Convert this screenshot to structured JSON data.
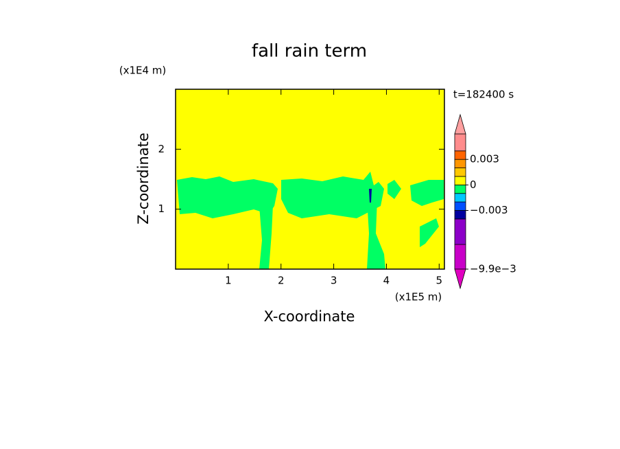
{
  "chart_data": {
    "type": "contour",
    "title": "fall rain term",
    "x_label": "X-coordinate",
    "y_label": "Z-coordinate",
    "x_unit": "(x1E5 m)",
    "y_unit": "(x1E4 m)",
    "annotation": "t=182400 s",
    "xlim": [
      0,
      5.1
    ],
    "ylim": [
      0,
      3
    ],
    "xticks": [
      1,
      2,
      3,
      4,
      5
    ],
    "yticks": [
      1,
      2
    ],
    "colorbar": {
      "levels": [
        -0.0099,
        -0.007,
        -0.004,
        -0.003,
        -0.002,
        -0.001,
        0,
        0.001,
        0.002,
        0.003,
        0.004,
        0.006
      ],
      "colors": [
        "#c800c8",
        "#8c00c8",
        "#0000a0",
        "#0050ff",
        "#00c8ff",
        "#00ff64",
        "#ffff00",
        "#ffc800",
        "#ff9600",
        "#ff6400",
        "#ff8c8c"
      ],
      "under_color": "#e000c0",
      "over_color": "#ffa0a0",
      "ticks": [
        {
          "value": 0.003,
          "label": "0.003"
        },
        0,
        {
          "value": -0.003,
          "label": "−0.003"
        },
        {
          "value": -0.0099,
          "label": "−9.9e−3"
        }
      ]
    }
  }
}
